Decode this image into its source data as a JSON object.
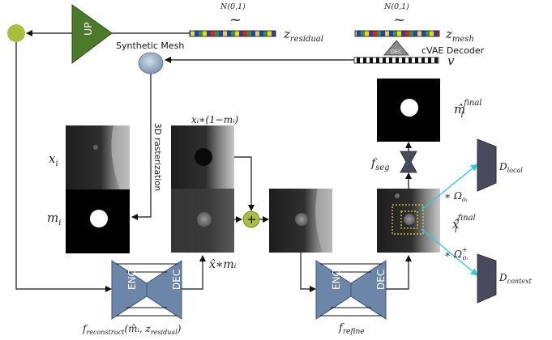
{
  "noise_label": "N(0,1)",
  "noise_label_2": "N(0,1)",
  "tilde": "~",
  "z_residual": "z",
  "z_residual_sub": "residual",
  "z_mesh": "z",
  "z_mesh_sub": "mesh",
  "v_label": "v",
  "cvae_decoder": "cVAE Decoder",
  "dec_small": "DEC",
  "up_label": "UP",
  "synthetic_mesh": "Synthetic Mesh",
  "rasterization": "3D rasterization",
  "x_i": "x",
  "x_i_sub": "i",
  "m_i": "m",
  "m_i_sub": "i",
  "xi_mask": "xᵢ∗(1−mᵢ)",
  "plus": "+",
  "xhat_m": "x̂∗mᵢ",
  "enc": "ENC",
  "dec": "DEC",
  "f_reconstruct": "f",
  "f_reconstruct_sub": "reconstruct",
  "f_reconstruct_args": "(m̂ᵢ, z",
  "f_reconstruct_args_sub": "residual",
  "f_reconstruct_close": ")",
  "f_refine": "f",
  "f_refine_sub": "refine",
  "f_seg": "f",
  "f_seg_sub": "seg",
  "mhat_final": "m̂",
  "mhat_final_sub": "i",
  "mhat_final_sup": "final",
  "xhat_final": "x̂",
  "xhat_final_sub": "i",
  "xhat_final_sup": "final",
  "omega_local": "∗ Ω",
  "omega_local_sub": "oᵢ",
  "omega_context": "∗ Ω",
  "omega_context_sup": "+",
  "omega_context_sub": "oᵢ",
  "d_local": "D",
  "d_local_sub": "local",
  "d_context": "D",
  "d_context_sub": "context",
  "colors": {
    "up_green": "#4a7a2a",
    "node_green": "#a8be3c",
    "network_blue": "#6b86a8",
    "discriminator": "#4a4a5e",
    "cyan_arrow": "#2ad0d0",
    "crop_yellow": "#e8e020"
  }
}
